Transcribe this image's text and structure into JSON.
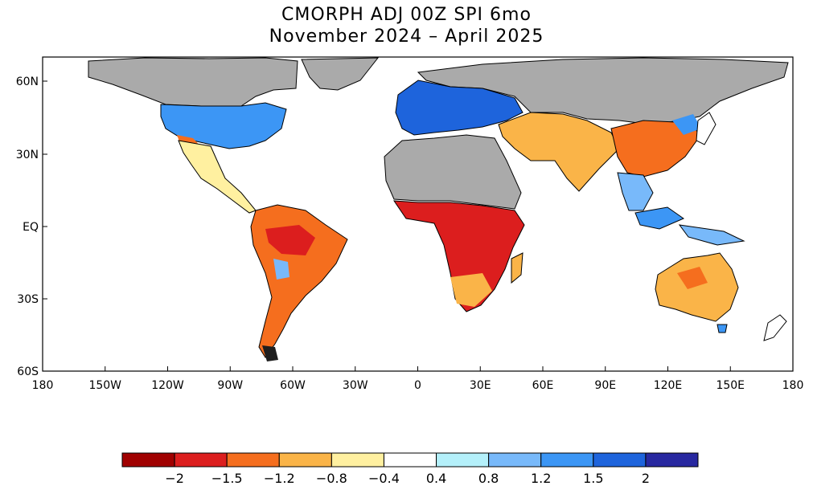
{
  "title": {
    "line1": "CMORPH ADJ 00Z SPI 6mo",
    "line2": "November 2024 – April 2025"
  },
  "map": {
    "lat_labels": [
      "60N",
      "30N",
      "EQ",
      "30S",
      "60S"
    ],
    "lon_labels": [
      "180",
      "150W",
      "120W",
      "90W",
      "60W",
      "30W",
      "0",
      "30E",
      "60E",
      "90E",
      "120E",
      "150E",
      "180"
    ],
    "colors": {
      "no_data_land": "#aaaaaa",
      "ocean": "#ffffff",
      "coastline": "#000000"
    }
  },
  "colorbar": {
    "colors": [
      "#a00000",
      "#dc1e1e",
      "#f56e1e",
      "#fab448",
      "#fff0a0",
      "#ffffff",
      "#b4f0fa",
      "#78b9fa",
      "#3c96f5",
      "#1e64dc",
      "#2828a0"
    ],
    "labels": [
      "−2",
      "−1.5",
      "−1.2",
      "−0.8",
      "−0.4",
      "0.4",
      "0.8",
      "1.2",
      "1.5",
      "2"
    ]
  }
}
